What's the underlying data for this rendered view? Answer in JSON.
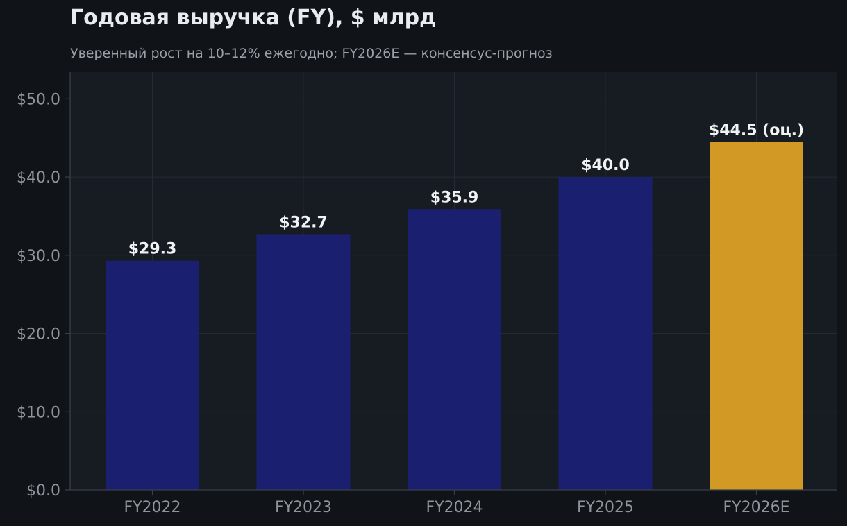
{
  "chart_data": {
    "type": "bar",
    "title": "Годовая выручка (FY), $ млрд",
    "subtitle": "Уверенный рост на 10–12% ежегодно; FY2026E — консенсус-прогноз",
    "xlabel": "",
    "ylabel": "",
    "categories": [
      "FY2022",
      "FY2023",
      "FY2024",
      "FY2025",
      "FY2026E"
    ],
    "values": [
      29.3,
      32.7,
      35.9,
      40.0,
      44.5
    ],
    "data_labels": [
      "$29.3",
      "$32.7",
      "$35.9",
      "$40.0",
      "$44.5 (оц.)"
    ],
    "estimate_flags": [
      false,
      false,
      false,
      false,
      true
    ],
    "ylim": [
      0,
      53.4
    ],
    "yticks": [
      0,
      10,
      20,
      30,
      40,
      50
    ],
    "ytick_labels": [
      "$0.0",
      "$10.0",
      "$20.0",
      "$30.0",
      "$40.0",
      "$50.0"
    ],
    "grid": true,
    "colors": {
      "actual": "#1b1f70",
      "estimate": "#d29a24",
      "background": "#101418",
      "plot_background": "#171b22",
      "grid": "#262b33",
      "axis": "#3a3f47",
      "tick_text": "#8f959c",
      "label_text": "#f0f2f4"
    }
  }
}
